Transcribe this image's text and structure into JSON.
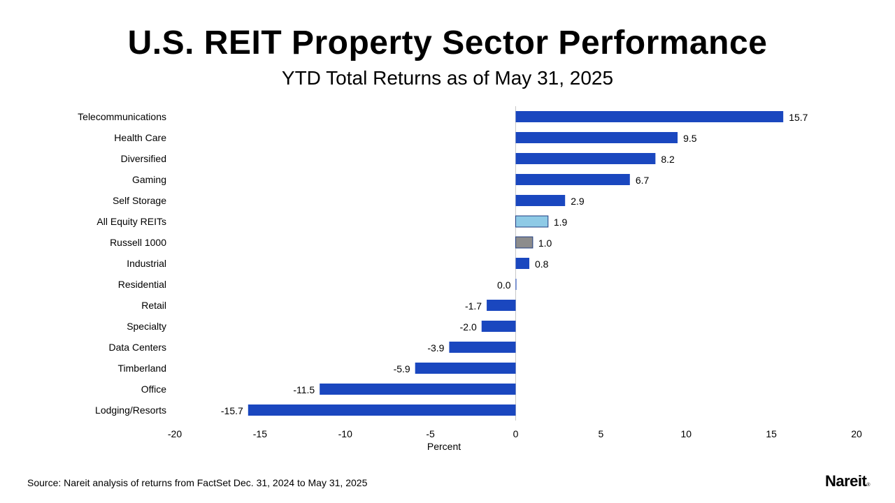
{
  "title": "U.S. REIT Property Sector Performance",
  "subtitle": "YTD Total Returns as of May 31, 2025",
  "source": "Source: Nareit analysis of returns from FactSet Dec. 31, 2024 to May 31, 2025",
  "logo": {
    "text": "Nareit",
    "mark": "®"
  },
  "colors": {
    "sector": "#1a47bf",
    "all_equity": "#8ecae6",
    "russell": "#8c8c8c",
    "outline": "#1f3c80",
    "axis": "#c8c8c8"
  },
  "chart_data": {
    "type": "bar",
    "orientation": "horizontal",
    "title": "U.S. REIT Property Sector Performance",
    "subtitle": "YTD Total Returns as of May 31, 2025",
    "xlabel": "Percent",
    "ylabel": "",
    "xlim": [
      -20,
      20
    ],
    "xticks": [
      -20,
      -15,
      -10,
      -5,
      0,
      5,
      10,
      15,
      20
    ],
    "categories": [
      "Telecommunications",
      "Health Care",
      "Diversified",
      "Gaming",
      "Self Storage",
      "All Equity REITs",
      "Russell 1000",
      "Industrial",
      "Residential",
      "Retail",
      "Specialty",
      "Data Centers",
      "Timberland",
      "Office",
      "Lodging/Resorts"
    ],
    "values": [
      15.7,
      9.5,
      8.2,
      6.7,
      2.9,
      1.9,
      1.0,
      0.8,
      0.0,
      -1.7,
      -2.0,
      -3.9,
      -5.9,
      -11.5,
      -15.7
    ],
    "labels": [
      "15.7",
      "9.5",
      "8.2",
      "6.7",
      "2.9",
      "1.9",
      "1.0",
      "0.8",
      "0.0",
      "-1.7",
      "-2.0",
      "-3.9",
      "-5.9",
      "-11.5",
      "-15.7"
    ],
    "bar_color_keys": [
      "sector",
      "sector",
      "sector",
      "sector",
      "sector",
      "all_equity",
      "russell",
      "sector",
      "sector",
      "sector",
      "sector",
      "sector",
      "sector",
      "sector",
      "sector"
    ]
  }
}
